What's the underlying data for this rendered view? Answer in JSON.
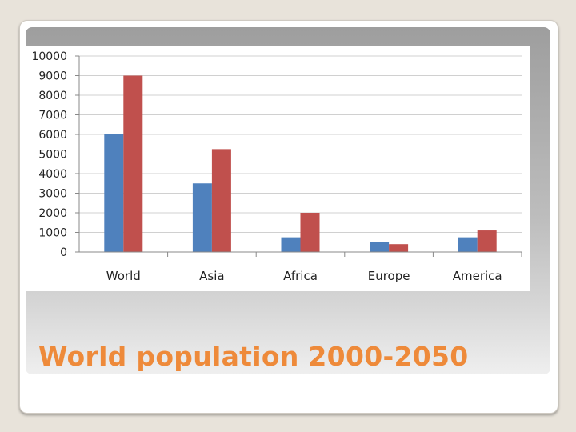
{
  "slide": {
    "title": "World population 2000-2050"
  },
  "colors": {
    "series_2000": "#4f81bd",
    "series_2050": "#c0504d",
    "title": "#ee8a3a",
    "grid": "#d0d0d0"
  },
  "chart_data": {
    "type": "bar",
    "title": "",
    "xlabel": "",
    "ylabel": "",
    "categories": [
      "World",
      "Asia",
      "Africa",
      "Europe",
      "America"
    ],
    "series": [
      {
        "color": "#4f81bd",
        "values": [
          6000,
          3500,
          750,
          500,
          750
        ]
      },
      {
        "color": "#c0504d",
        "values": [
          9000,
          5250,
          2000,
          400,
          1100
        ]
      }
    ],
    "ylim": [
      0,
      10000
    ],
    "yticks": [
      "0",
      "1000",
      "2000",
      "3000",
      "4000",
      "5000",
      "6000",
      "7000",
      "8000",
      "9000",
      "10000"
    ],
    "grid": true,
    "legend": "none"
  }
}
